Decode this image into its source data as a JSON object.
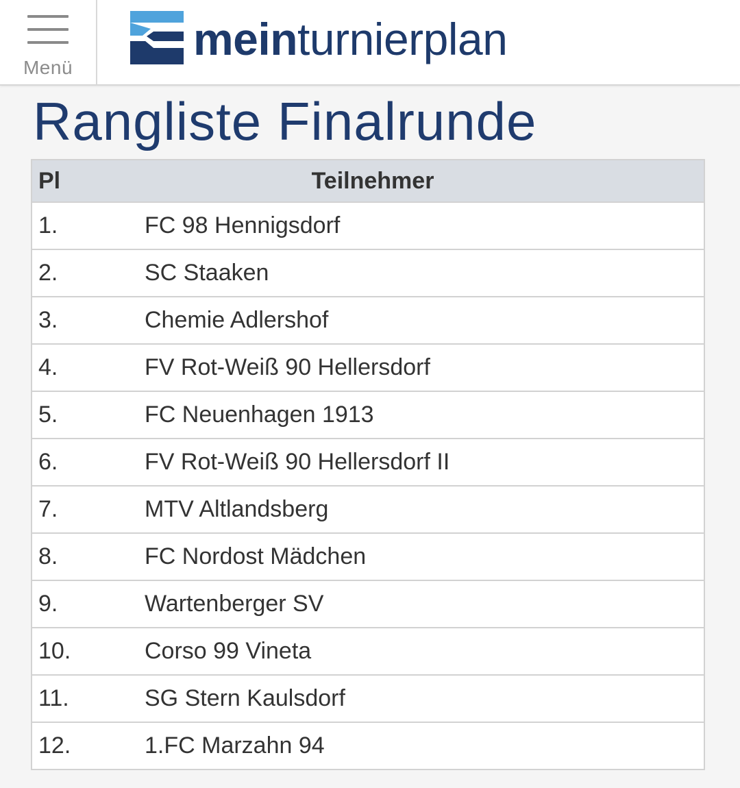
{
  "header": {
    "menu_label": "Menü",
    "logo": {
      "text_bold": "mein",
      "text_light": "turnierplan",
      "colors": {
        "light_blue": "#4fa3dc",
        "dark_blue": "#1e3a6b"
      }
    }
  },
  "page": {
    "title": "Rangliste Finalrunde"
  },
  "table": {
    "headers": {
      "place": "Pl",
      "participant": "Teilnehmer"
    },
    "rows": [
      {
        "place": "1.",
        "team": "FC 98 Hennigsdorf"
      },
      {
        "place": "2.",
        "team": "SC Staaken"
      },
      {
        "place": "3.",
        "team": "Chemie Adlershof"
      },
      {
        "place": "4.",
        "team": "FV Rot-Weiß 90 Hellersdorf"
      },
      {
        "place": "5.",
        "team": "FC Neuenhagen 1913"
      },
      {
        "place": "6.",
        "team": "FV Rot-Weiß 90 Hellersdorf II"
      },
      {
        "place": "7.",
        "team": "MTV Altlandsberg"
      },
      {
        "place": "8.",
        "team": "FC Nordost Mädchen"
      },
      {
        "place": "9.",
        "team": "Wartenberger SV"
      },
      {
        "place": "10.",
        "team": "Corso 99 Vineta"
      },
      {
        "place": "11.",
        "team": "SG Stern Kaulsdorf"
      },
      {
        "place": "12.",
        "team": "1.FC Marzahn 94"
      }
    ]
  },
  "colors": {
    "title": "#1f3b6e",
    "header_bg": "#d9dde3",
    "text": "#333333",
    "page_bg": "#f5f5f5"
  }
}
